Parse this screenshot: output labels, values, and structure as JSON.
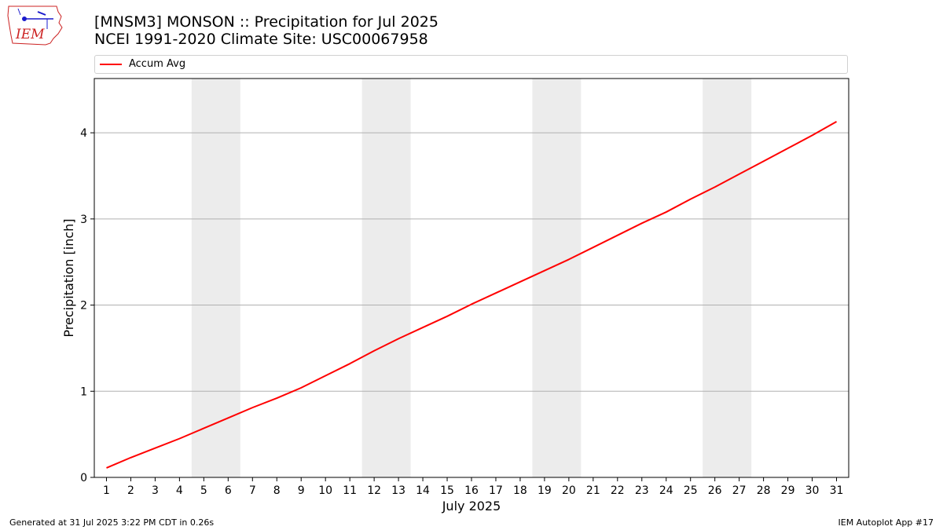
{
  "header": {
    "title_line1": "[MNSM3] MONSON :: Precipitation for Jul 2025",
    "title_line2": "NCEI 1991-2020 Climate Site: USC00067958",
    "logo_text": "IEM"
  },
  "footer": {
    "generated": "Generated at 31 Jul 2025 3:22 PM CDT in 0.26s",
    "app": "IEM Autoplot App #17"
  },
  "colors": {
    "series": "#ff0000",
    "weekend_band": "#ececec",
    "grid": "#b0b0b0",
    "logo": "#cc2222"
  },
  "chart_data": {
    "type": "line",
    "xlabel": "July 2025",
    "ylabel": "Precipitation [inch]",
    "categories": [
      "1",
      "2",
      "3",
      "4",
      "5",
      "6",
      "7",
      "8",
      "9",
      "10",
      "11",
      "12",
      "13",
      "14",
      "15",
      "16",
      "17",
      "18",
      "19",
      "20",
      "21",
      "22",
      "23",
      "24",
      "25",
      "26",
      "27",
      "28",
      "29",
      "30",
      "31"
    ],
    "x": [
      1,
      2,
      3,
      4,
      5,
      6,
      7,
      8,
      9,
      10,
      11,
      12,
      13,
      14,
      15,
      16,
      17,
      18,
      19,
      20,
      21,
      22,
      23,
      24,
      25,
      26,
      27,
      28,
      29,
      30,
      31
    ],
    "ylim": [
      0,
      4.63
    ],
    "xlim": [
      0.5,
      31.5
    ],
    "yticks": [
      0,
      1,
      2,
      3,
      4
    ],
    "grid": "y",
    "legend": "top",
    "shaded_ranges": [
      [
        4.5,
        6.5
      ],
      [
        11.5,
        13.5
      ],
      [
        18.5,
        20.5
      ],
      [
        25.5,
        27.5
      ]
    ],
    "series": [
      {
        "name": "Accum Avg",
        "values": [
          0.11,
          0.23,
          0.34,
          0.45,
          0.57,
          0.69,
          0.81,
          0.92,
          1.04,
          1.18,
          1.32,
          1.47,
          1.61,
          1.74,
          1.87,
          2.01,
          2.14,
          2.27,
          2.4,
          2.53,
          2.67,
          2.81,
          2.95,
          3.08,
          3.23,
          3.37,
          3.52,
          3.67,
          3.82,
          3.97,
          4.13
        ]
      }
    ]
  }
}
